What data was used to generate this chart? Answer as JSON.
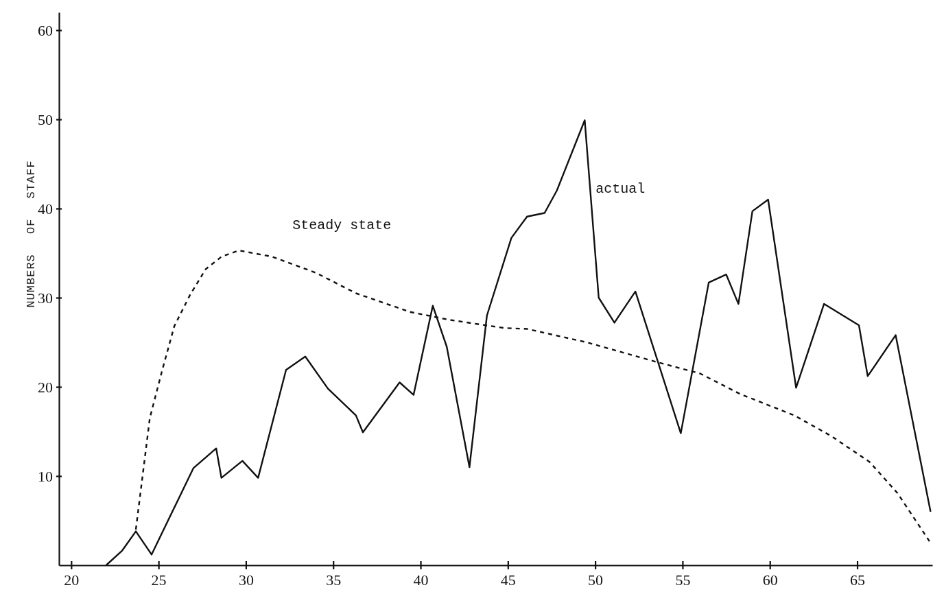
{
  "chart_data": {
    "type": "line",
    "ylabel": "NUMBERS OF STAFF",
    "xlim": [
      19.3,
      69.3
    ],
    "ylim": [
      0,
      62
    ],
    "xticks": [
      20,
      25,
      30,
      35,
      40,
      45,
      50,
      55,
      60,
      65
    ],
    "yticks": [
      10,
      20,
      30,
      40,
      50,
      60
    ],
    "grid": false,
    "series": [
      {
        "name": "Steady state",
        "color": "#111111",
        "line_style": "dashed",
        "x": [
          23.7,
          24.5,
          25.2,
          25.9,
          26.8,
          27.7,
          28.6,
          29.6,
          31.5,
          34.0,
          36.3,
          39.4,
          41.7,
          44.8,
          46.1,
          49.5,
          53.5,
          56.0,
          58.3,
          61.4,
          63.5,
          65.7,
          67.3,
          69.2
        ],
        "values": [
          4.0,
          16.5,
          21.8,
          26.8,
          30.3,
          33.2,
          34.6,
          35.3,
          34.6,
          32.8,
          30.5,
          28.4,
          27.5,
          26.6,
          26.5,
          25.0,
          22.8,
          21.5,
          19.2,
          16.8,
          14.5,
          11.6,
          8.1,
          2.5
        ]
      },
      {
        "name": "actual",
        "color": "#111111",
        "line_style": "solid",
        "x": [
          22.0,
          22.9,
          23.7,
          24.6,
          27.0,
          28.3,
          28.6,
          29.8,
          30.7,
          32.3,
          33.4,
          34.7,
          36.3,
          36.7,
          38.8,
          39.6,
          40.7,
          41.5,
          42.8,
          43.8,
          45.2,
          46.1,
          47.1,
          47.8,
          49.4,
          50.2,
          51.1,
          52.3,
          54.9,
          56.5,
          57.5,
          58.2,
          59.0,
          59.9,
          61.5,
          63.1,
          65.1,
          65.6,
          67.2,
          69.2
        ],
        "values": [
          0,
          1.6,
          3.8,
          1.2,
          10.9,
          13.1,
          9.8,
          11.7,
          9.8,
          21.9,
          23.4,
          19.8,
          16.8,
          14.9,
          20.5,
          19.1,
          29.1,
          24.5,
          11.0,
          28.0,
          36.7,
          39.1,
          39.5,
          42.0,
          49.9,
          30.0,
          27.2,
          30.7,
          14.8,
          31.7,
          32.6,
          29.3,
          39.7,
          41.0,
          19.9,
          29.3,
          26.9,
          21.2,
          25.8,
          6.0
        ]
      }
    ]
  }
}
